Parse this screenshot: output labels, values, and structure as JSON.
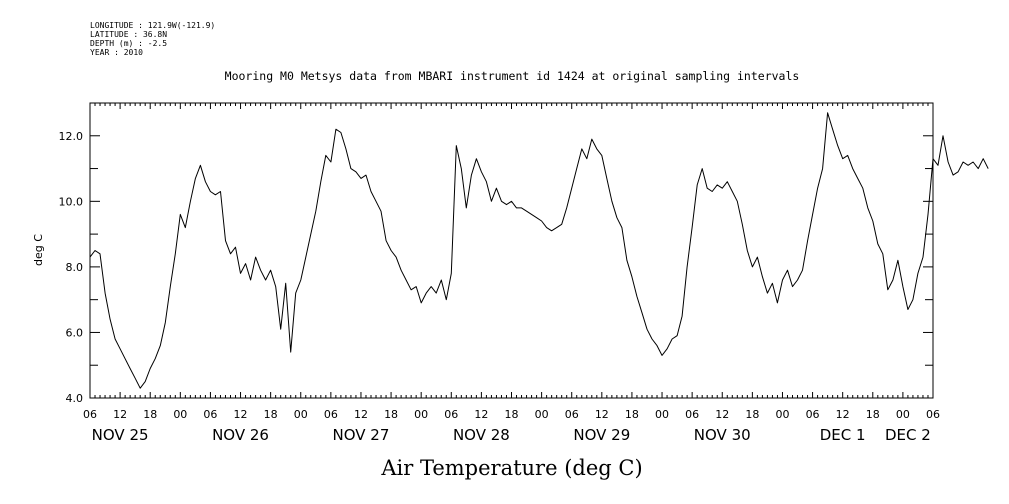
{
  "header_info": [
    "LONGITUDE : 121.9W(-121.9)",
    "LATITUDE : 36.8N",
    "DEPTH (m) : -2.5",
    "YEAR : 2010"
  ],
  "chart_data": {
    "type": "line",
    "title": "Mooring M0 Metsys data from MBARI instrument id 1424 at original sampling intervals",
    "xlabel": "Air Temperature (deg C)",
    "ylabel": "deg C",
    "ylim": [
      4.0,
      13.0
    ],
    "y_ticks_labeled": [
      "4.0",
      "6.0",
      "8.0",
      "10.0",
      "12.0"
    ],
    "x_range_hours": [
      "2010-11-25T06:00",
      "2010-12-02T06:00"
    ],
    "hour_tick_labels": [
      "06",
      "12",
      "18",
      "00",
      "06",
      "12",
      "18",
      "00",
      "06",
      "12",
      "18",
      "00",
      "06",
      "12",
      "18",
      "00",
      "06",
      "12",
      "18",
      "00",
      "06",
      "12",
      "18",
      "00",
      "06",
      "12",
      "18",
      "00",
      "06"
    ],
    "day_labels": [
      "NOV 25",
      "NOV 26",
      "NOV 27",
      "NOV 28",
      "NOV 29",
      "NOV 30",
      "DEC  1",
      "DEC  2"
    ],
    "grid": false,
    "series": [
      {
        "color": "#000000",
        "points": [
          [
            "11-25 06:00",
            8.3
          ],
          [
            "11-25 07:00",
            8.5
          ],
          [
            "11-25 08:00",
            8.4
          ],
          [
            "11-25 09:00",
            7.2
          ],
          [
            "11-25 10:00",
            6.4
          ],
          [
            "11-25 11:00",
            5.8
          ],
          [
            "11-25 12:00",
            5.5
          ],
          [
            "11-25 13:00",
            5.2
          ],
          [
            "11-25 14:00",
            4.9
          ],
          [
            "11-25 15:00",
            4.6
          ],
          [
            "11-25 16:00",
            4.3
          ],
          [
            "11-25 17:00",
            4.5
          ],
          [
            "11-25 18:00",
            4.9
          ],
          [
            "11-25 19:00",
            5.2
          ],
          [
            "11-25 20:00",
            5.6
          ],
          [
            "11-25 21:00",
            6.3
          ],
          [
            "11-25 22:00",
            7.4
          ],
          [
            "11-25 23:00",
            8.4
          ],
          [
            "11-26 00:00",
            9.6
          ],
          [
            "11-26 01:00",
            9.2
          ],
          [
            "11-26 02:00",
            10.0
          ],
          [
            "11-26 03:00",
            10.7
          ],
          [
            "11-26 04:00",
            11.1
          ],
          [
            "11-26 05:00",
            10.6
          ],
          [
            "11-26 06:00",
            10.3
          ],
          [
            "11-26 07:00",
            10.2
          ],
          [
            "11-26 08:00",
            10.3
          ],
          [
            "11-26 09:00",
            8.8
          ],
          [
            "11-26 10:00",
            8.4
          ],
          [
            "11-26 11:00",
            8.6
          ],
          [
            "11-26 12:00",
            7.8
          ],
          [
            "11-26 13:00",
            8.1
          ],
          [
            "11-26 14:00",
            7.6
          ],
          [
            "11-26 15:00",
            8.3
          ],
          [
            "11-26 16:00",
            7.9
          ],
          [
            "11-26 17:00",
            7.6
          ],
          [
            "11-26 18:00",
            7.9
          ],
          [
            "11-26 19:00",
            7.4
          ],
          [
            "11-26 20:00",
            6.1
          ],
          [
            "11-26 21:00",
            7.5
          ],
          [
            "11-26 22:00",
            5.4
          ],
          [
            "11-26 23:00",
            7.2
          ],
          [
            "11-27 00:00",
            7.6
          ],
          [
            "11-27 01:00",
            8.3
          ],
          [
            "11-27 02:00",
            9.0
          ],
          [
            "11-27 03:00",
            9.7
          ],
          [
            "11-27 04:00",
            10.6
          ],
          [
            "11-27 05:00",
            11.4
          ],
          [
            "11-27 06:00",
            11.2
          ],
          [
            "11-27 07:00",
            12.2
          ],
          [
            "11-27 08:00",
            12.1
          ],
          [
            "11-27 09:00",
            11.6
          ],
          [
            "11-27 10:00",
            11.0
          ],
          [
            "11-27 11:00",
            10.9
          ],
          [
            "11-27 12:00",
            10.7
          ],
          [
            "11-27 13:00",
            10.8
          ],
          [
            "11-27 14:00",
            10.3
          ],
          [
            "11-27 15:00",
            10.0
          ],
          [
            "11-27 16:00",
            9.7
          ],
          [
            "11-27 17:00",
            8.8
          ],
          [
            "11-27 18:00",
            8.5
          ],
          [
            "11-27 19:00",
            8.3
          ],
          [
            "11-27 20:00",
            7.9
          ],
          [
            "11-27 21:00",
            7.6
          ],
          [
            "11-27 22:00",
            7.3
          ],
          [
            "11-27 23:00",
            7.4
          ],
          [
            "11-28 00:00",
            6.9
          ],
          [
            "11-28 01:00",
            7.2
          ],
          [
            "11-28 02:00",
            7.4
          ],
          [
            "11-28 03:00",
            7.2
          ],
          [
            "11-28 04:00",
            7.6
          ],
          [
            "11-28 05:00",
            7.0
          ],
          [
            "11-28 06:00",
            7.8
          ],
          [
            "11-28 07:00",
            11.7
          ],
          [
            "11-28 08:00",
            11.0
          ],
          [
            "11-28 09:00",
            9.8
          ],
          [
            "11-28 10:00",
            10.8
          ],
          [
            "11-28 11:00",
            11.3
          ],
          [
            "11-28 12:00",
            10.9
          ],
          [
            "11-28 13:00",
            10.6
          ],
          [
            "11-28 14:00",
            10.0
          ],
          [
            "11-28 15:00",
            10.4
          ],
          [
            "11-28 16:00",
            10.0
          ],
          [
            "11-28 17:00",
            9.9
          ],
          [
            "11-28 18:00",
            10.0
          ],
          [
            "11-28 19:00",
            9.8
          ],
          [
            "11-28 20:00",
            9.8
          ],
          [
            "11-28 21:00",
            9.7
          ],
          [
            "11-28 22:00",
            9.6
          ],
          [
            "11-28 23:00",
            9.5
          ],
          [
            "11-29 00:00",
            9.4
          ],
          [
            "11-29 01:00",
            9.2
          ],
          [
            "11-29 02:00",
            9.1
          ],
          [
            "11-29 03:00",
            9.2
          ],
          [
            "11-29 04:00",
            9.3
          ],
          [
            "11-29 05:00",
            9.8
          ],
          [
            "11-29 06:00",
            10.4
          ],
          [
            "11-29 07:00",
            11.0
          ],
          [
            "11-29 08:00",
            11.6
          ],
          [
            "11-29 09:00",
            11.3
          ],
          [
            "11-29 10:00",
            11.9
          ],
          [
            "11-29 11:00",
            11.6
          ],
          [
            "11-29 12:00",
            11.4
          ],
          [
            "11-29 13:00",
            10.7
          ],
          [
            "11-29 14:00",
            10.0
          ],
          [
            "11-29 15:00",
            9.5
          ],
          [
            "11-29 16:00",
            9.2
          ],
          [
            "11-29 17:00",
            8.2
          ],
          [
            "11-29 18:00",
            7.7
          ],
          [
            "11-29 19:00",
            7.1
          ],
          [
            "11-29 20:00",
            6.6
          ],
          [
            "11-29 21:00",
            6.1
          ],
          [
            "11-29 22:00",
            5.8
          ],
          [
            "11-29 23:00",
            5.6
          ],
          [
            "11-30 00:00",
            5.3
          ],
          [
            "11-30 01:00",
            5.5
          ],
          [
            "11-30 02:00",
            5.8
          ],
          [
            "11-30 03:00",
            5.9
          ],
          [
            "11-30 04:00",
            6.5
          ],
          [
            "11-30 05:00",
            8.0
          ],
          [
            "11-30 06:00",
            9.2
          ],
          [
            "11-30 07:00",
            10.5
          ],
          [
            "11-30 08:00",
            11.0
          ],
          [
            "11-30 09:00",
            10.4
          ],
          [
            "11-30 10:00",
            10.3
          ],
          [
            "11-30 11:00",
            10.5
          ],
          [
            "11-30 12:00",
            10.4
          ],
          [
            "11-30 13:00",
            10.6
          ],
          [
            "11-30 14:00",
            10.3
          ],
          [
            "11-30 15:00",
            10.0
          ],
          [
            "11-30 16:00",
            9.3
          ],
          [
            "11-30 17:00",
            8.5
          ],
          [
            "11-30 18:00",
            8.0
          ],
          [
            "11-30 19:00",
            8.3
          ],
          [
            "11-30 20:00",
            7.7
          ],
          [
            "11-30 21:00",
            7.2
          ],
          [
            "11-30 22:00",
            7.5
          ],
          [
            "11-30 23:00",
            6.9
          ],
          [
            "12-01 00:00",
            7.6
          ],
          [
            "12-01 01:00",
            7.9
          ],
          [
            "12-01 02:00",
            7.4
          ],
          [
            "12-01 03:00",
            7.6
          ],
          [
            "12-01 04:00",
            7.9
          ],
          [
            "12-01 05:00",
            8.8
          ],
          [
            "12-01 06:00",
            9.6
          ],
          [
            "12-01 07:00",
            10.4
          ],
          [
            "12-01 08:00",
            11.0
          ],
          [
            "12-01 09:00",
            12.7
          ],
          [
            "12-01 10:00",
            12.2
          ],
          [
            "12-01 11:00",
            11.7
          ],
          [
            "12-01 12:00",
            11.3
          ],
          [
            "12-01 13:00",
            11.4
          ],
          [
            "12-01 14:00",
            11.0
          ],
          [
            "12-01 15:00",
            10.7
          ],
          [
            "12-01 16:00",
            10.4
          ],
          [
            "12-01 17:00",
            9.8
          ],
          [
            "12-01 18:00",
            9.4
          ],
          [
            "12-01 19:00",
            8.7
          ],
          [
            "12-01 20:00",
            8.4
          ],
          [
            "12-01 21:00",
            7.3
          ],
          [
            "12-01 22:00",
            7.6
          ],
          [
            "12-01 23:00",
            8.2
          ],
          [
            "12-02 00:00",
            7.4
          ],
          [
            "12-02 01:00",
            6.7
          ],
          [
            "12-02 02:00",
            7.0
          ],
          [
            "12-02 03:00",
            7.8
          ],
          [
            "12-02 04:00",
            8.3
          ],
          [
            "12-02 05:00",
            9.6
          ],
          [
            "12-02 06:00",
            11.3
          ],
          [
            "12-02 07:00",
            11.1
          ],
          [
            "12-02 08:00",
            12.0
          ],
          [
            "12-02 09:00",
            11.2
          ],
          [
            "12-02 10:00",
            10.8
          ],
          [
            "12-02 11:00",
            10.9
          ],
          [
            "12-02 12:00",
            11.2
          ],
          [
            "12-02 13:00",
            11.1
          ],
          [
            "12-02 14:00",
            11.2
          ],
          [
            "12-02 15:00",
            11.0
          ],
          [
            "12-02 16:00",
            11.3
          ],
          [
            "12-02 17:00",
            11.0
          ]
        ]
      }
    ]
  }
}
